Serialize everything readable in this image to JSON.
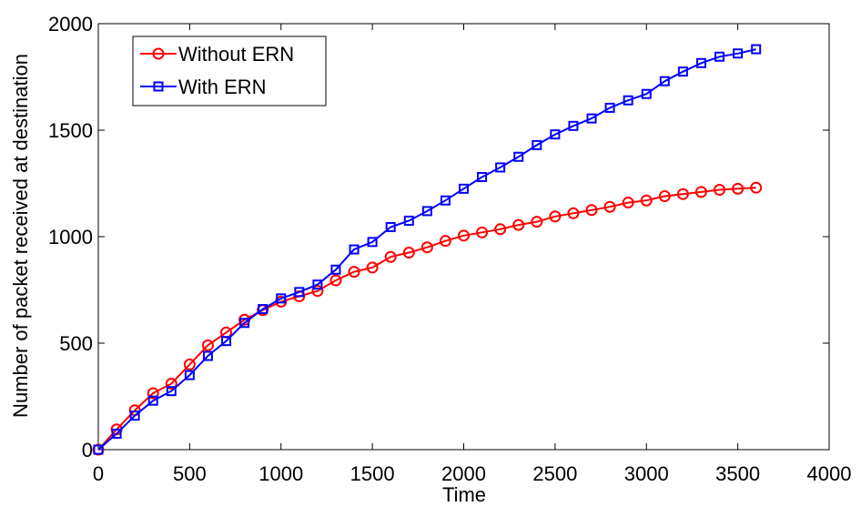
{
  "chart_data": {
    "type": "line",
    "title": "",
    "xlabel": "Time",
    "ylabel": "Number of packet received at destination",
    "xlim": [
      0,
      4000
    ],
    "ylim": [
      0,
      2000
    ],
    "xticks": [
      0,
      500,
      1000,
      1500,
      2000,
      2500,
      3000,
      3500,
      4000
    ],
    "yticks": [
      0,
      500,
      1000,
      1500,
      2000
    ],
    "xtick_labels": [
      "0",
      "500",
      "1000",
      "1500",
      "2000",
      "2500",
      "3000",
      "3500",
      "4000"
    ],
    "ytick_labels": [
      "0",
      "500",
      "1000",
      "1500",
      "2000"
    ],
    "grid": false,
    "legend_position": "top-left",
    "x": [
      0,
      100,
      200,
      300,
      400,
      500,
      600,
      700,
      800,
      900,
      1000,
      1100,
      1200,
      1300,
      1400,
      1500,
      1600,
      1700,
      1800,
      1900,
      2000,
      2100,
      2200,
      2300,
      2400,
      2500,
      2600,
      2700,
      2800,
      2900,
      3000,
      3100,
      3200,
      3300,
      3400,
      3500,
      3600
    ],
    "series": [
      {
        "name": "Without ERN",
        "color": "#ff0000",
        "marker": "circle",
        "values": [
          0,
          95,
          185,
          265,
          310,
          400,
          490,
          550,
          610,
          655,
          695,
          720,
          745,
          795,
          835,
          855,
          905,
          925,
          950,
          980,
          1005,
          1020,
          1035,
          1055,
          1070,
          1095,
          1110,
          1125,
          1140,
          1160,
          1170,
          1190,
          1200,
          1210,
          1220,
          1225,
          1230
        ]
      },
      {
        "name": "With ERN",
        "color": "#0000ff",
        "marker": "square",
        "values": [
          0,
          75,
          160,
          230,
          275,
          350,
          440,
          510,
          595,
          660,
          710,
          740,
          775,
          845,
          940,
          975,
          1045,
          1075,
          1120,
          1170,
          1225,
          1280,
          1325,
          1375,
          1430,
          1480,
          1520,
          1555,
          1605,
          1640,
          1670,
          1730,
          1775,
          1815,
          1845,
          1860,
          1880
        ]
      }
    ]
  }
}
